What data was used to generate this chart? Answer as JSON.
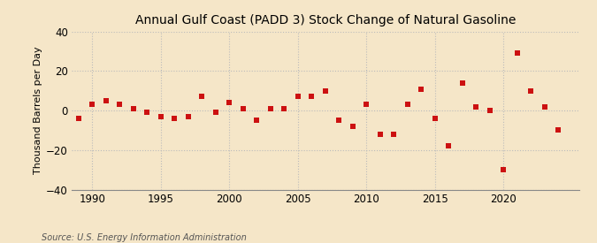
{
  "title": "Annual Gulf Coast (PADD 3) Stock Change of Natural Gasoline",
  "ylabel": "Thousand Barrels per Day",
  "source": "Source: U.S. Energy Information Administration",
  "background_color": "#f5e6c8",
  "marker_color": "#cc1111",
  "marker_size": 5,
  "grid_color": "#bbbbbb",
  "ylim": [
    -40,
    40
  ],
  "yticks": [
    -40,
    -20,
    0,
    20,
    40
  ],
  "years": [
    1989,
    1990,
    1991,
    1992,
    1993,
    1994,
    1995,
    1996,
    1997,
    1998,
    1999,
    2000,
    2001,
    2002,
    2003,
    2004,
    2005,
    2006,
    2007,
    2008,
    2009,
    2010,
    2011,
    2012,
    2013,
    2014,
    2015,
    2016,
    2017,
    2018,
    2019,
    2020,
    2021,
    2022,
    2023,
    2024
  ],
  "values": [
    -4,
    3,
    5,
    3,
    1,
    -1,
    -3,
    -4,
    -3,
    7,
    -1,
    4,
    1,
    -5,
    1,
    1,
    7,
    7,
    10,
    -5,
    -8,
    3,
    -12,
    -12,
    3,
    11,
    -4,
    -18,
    14,
    2,
    0,
    -30,
    29,
    10,
    2,
    -10
  ],
  "xlim_left": 1988.5,
  "xlim_right": 2025.5,
  "xticks": [
    1990,
    1995,
    2000,
    2005,
    2010,
    2015,
    2020
  ]
}
